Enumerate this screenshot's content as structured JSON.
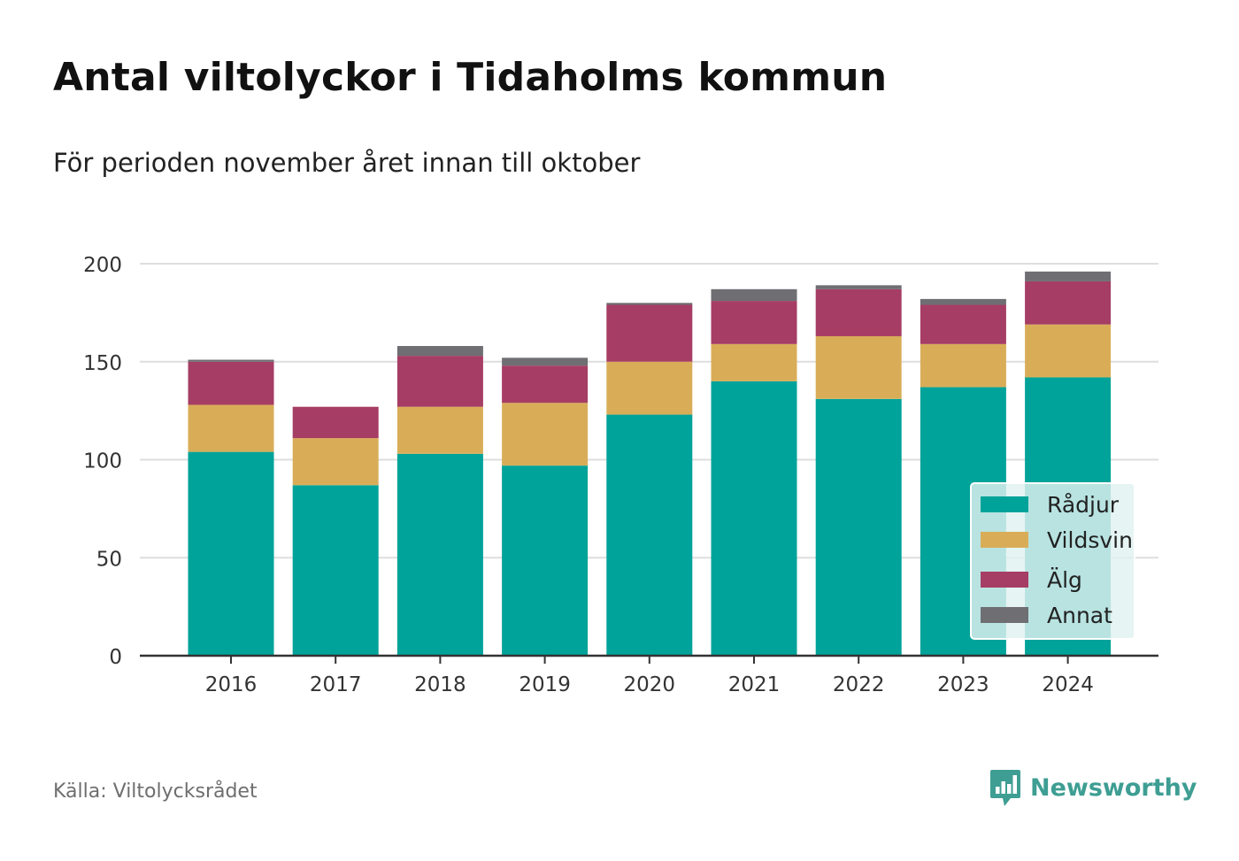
{
  "title": "Antal viltolyckor i Tidaholms kommun",
  "subtitle": "För perioden november året innan till oktober",
  "source": "Källa: Viltolycksrådet",
  "brand": {
    "name": "Newsworthy",
    "icon": "newsworthy-logo-icon",
    "color": "#3e9e93"
  },
  "chart_data": {
    "type": "bar",
    "stacked": true,
    "categories": [
      "2016",
      "2017",
      "2018",
      "2019",
      "2020",
      "2021",
      "2022",
      "2023",
      "2024"
    ],
    "series": [
      {
        "name": "Rådjur",
        "color": "#00a39a",
        "values": [
          104,
          87,
          103,
          97,
          123,
          140,
          131,
          137,
          142
        ]
      },
      {
        "name": "Vildsvin",
        "color": "#d9ad58",
        "values": [
          24,
          24,
          24,
          32,
          27,
          19,
          32,
          22,
          27
        ]
      },
      {
        "name": "Älg",
        "color": "#a63d64",
        "values": [
          22,
          16,
          26,
          19,
          29,
          22,
          24,
          20,
          22
        ]
      },
      {
        "name": "Annat",
        "color": "#6e6e73",
        "values": [
          1,
          0,
          5,
          4,
          1,
          6,
          2,
          3,
          5
        ]
      }
    ],
    "ylim": [
      0,
      200
    ],
    "yticks": [
      0,
      50,
      100,
      150,
      200
    ],
    "grid": true,
    "legend": "bottom-right"
  }
}
